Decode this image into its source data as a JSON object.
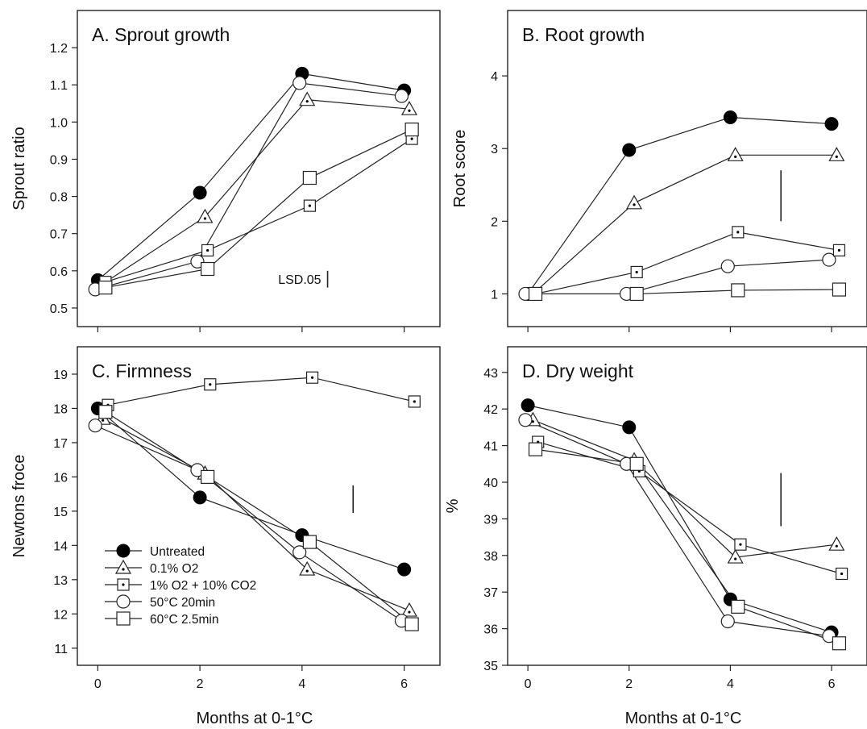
{
  "chart_data": [
    {
      "type": "line",
      "title": "A.  Sprout growth",
      "xlabel": "",
      "ylabel": "Sprout ratio",
      "xlim": [
        -0.4,
        6.7
      ],
      "ylim": [
        0.45,
        1.3
      ],
      "yticks": [
        "0.5",
        "0.6",
        "0.7",
        "0.8",
        "0.9",
        "1.0",
        "1.1",
        "1.2"
      ],
      "xticks": [],
      "lsd": {
        "label": "LSD.05",
        "x": 4.5,
        "ymin": 0.555,
        "ymax": 0.6
      },
      "series": [
        {
          "name": "Untreated",
          "marker": "filled-circle",
          "x": [
            0,
            2,
            4,
            6
          ],
          "values": [
            0.575,
            0.81,
            1.13,
            1.085
          ]
        },
        {
          "name": "0.1% O2",
          "marker": "dotted-triangle",
          "x": [
            0.1,
            2.1,
            4.1,
            6.1
          ],
          "values": [
            0.565,
            0.745,
            1.06,
            1.035
          ]
        },
        {
          "name": "1% O2 + 10% CO2",
          "marker": "dotted-square",
          "x": [
            0.15,
            2.15,
            4.15,
            6.15
          ],
          "values": [
            0.57,
            0.655,
            0.775,
            0.955
          ]
        },
        {
          "name": "50°C 20min",
          "marker": "open-circle",
          "x": [
            -0.05,
            1.95,
            3.95,
            5.95
          ],
          "values": [
            0.55,
            0.625,
            1.105,
            1.07
          ]
        },
        {
          "name": "60°C 2.5min",
          "marker": "open-square",
          "x": [
            0.15,
            2.15,
            4.15,
            6.15
          ],
          "values": [
            0.555,
            0.605,
            0.85,
            0.98
          ]
        }
      ]
    },
    {
      "type": "line",
      "title": "B.  Root growth",
      "xlabel": "",
      "ylabel": "Root score",
      "xlim": [
        -0.4,
        6.7
      ],
      "ylim": [
        0.55,
        4.9
      ],
      "yticks": [
        "1",
        "2",
        "3",
        "4"
      ],
      "xticks": [],
      "lsd": {
        "label": "",
        "x": 5.0,
        "ymin": 2.0,
        "ymax": 2.7
      },
      "series": [
        {
          "name": "Untreated",
          "marker": "filled-circle",
          "x": [
            0,
            2,
            4,
            6
          ],
          "values": [
            1.0,
            2.98,
            3.43,
            3.34
          ]
        },
        {
          "name": "0.1% O2",
          "marker": "dotted-triangle",
          "x": [
            0.1,
            2.1,
            4.1,
            6.1
          ],
          "values": [
            1.0,
            2.25,
            2.91,
            2.91
          ]
        },
        {
          "name": "1% O2 + 10% CO2",
          "marker": "dotted-square",
          "x": [
            0.15,
            2.15,
            4.15,
            6.15
          ],
          "values": [
            1.0,
            1.3,
            1.85,
            1.6
          ]
        },
        {
          "name": "50°C 20min",
          "marker": "open-circle",
          "x": [
            -0.05,
            1.95,
            3.95,
            5.95
          ],
          "values": [
            1.0,
            1.0,
            1.38,
            1.47
          ]
        },
        {
          "name": "60°C 2.5min",
          "marker": "open-square",
          "x": [
            0.15,
            2.15,
            4.15,
            6.15
          ],
          "values": [
            1.0,
            1.0,
            1.05,
            1.06
          ]
        }
      ]
    },
    {
      "type": "line",
      "title": "C.  Firmness",
      "xlabel": "Months at 0-1°C",
      "ylabel": "Newtons froce",
      "xlim": [
        -0.4,
        6.7
      ],
      "ylim": [
        10.5,
        19.8
      ],
      "yticks": [
        "11",
        "12",
        "13",
        "14",
        "15",
        "16",
        "17",
        "18",
        "19"
      ],
      "xticks": [
        "0",
        "2",
        "4",
        "6"
      ],
      "lsd": {
        "label": "",
        "x": 5.0,
        "ymin": 14.95,
        "ymax": 15.75
      },
      "series": [
        {
          "name": "Untreated",
          "marker": "filled-circle",
          "x": [
            0,
            2,
            4,
            6
          ],
          "values": [
            18.0,
            15.4,
            14.3,
            13.3
          ]
        },
        {
          "name": "0.1% O2",
          "marker": "dotted-triangle",
          "x": [
            0.1,
            2.1,
            4.1,
            6.1
          ],
          "values": [
            17.7,
            16.1,
            13.3,
            12.1
          ]
        },
        {
          "name": "1% O2 + 10% CO2",
          "marker": "dotted-square",
          "x": [
            0.2,
            2.2,
            4.2,
            6.2
          ],
          "values": [
            18.1,
            18.7,
            18.9,
            18.2
          ]
        },
        {
          "name": "50°C 20min",
          "marker": "open-circle",
          "x": [
            -0.05,
            1.95,
            3.95,
            5.95
          ],
          "values": [
            17.5,
            16.2,
            13.8,
            11.8
          ]
        },
        {
          "name": "60°C 2.5min",
          "marker": "open-square",
          "x": [
            0.15,
            2.15,
            4.15,
            6.15
          ],
          "values": [
            17.9,
            16.0,
            14.1,
            11.7
          ]
        }
      ],
      "legend": {
        "placement": "bottom-left",
        "items": [
          "Untreated",
          "0.1% O2",
          "1% O2 + 10% CO2",
          "50°C 20min",
          "60°C 2.5min"
        ]
      }
    },
    {
      "type": "line",
      "title": "D.  Dry weight",
      "xlabel": "Months at 0-1°C",
      "ylabel": "%",
      "xlim": [
        -0.4,
        6.7
      ],
      "ylim": [
        35.0,
        43.7
      ],
      "yticks": [
        "35",
        "36",
        "37",
        "38",
        "39",
        "40",
        "41",
        "42",
        "43"
      ],
      "xticks": [
        "0",
        "2",
        "4",
        "6"
      ],
      "lsd": {
        "label": "",
        "x": 5.0,
        "ymin": 38.8,
        "ymax": 40.25
      },
      "series": [
        {
          "name": "Untreated",
          "marker": "filled-circle",
          "x": [
            0,
            2,
            4,
            6
          ],
          "values": [
            42.1,
            41.5,
            36.8,
            35.9
          ]
        },
        {
          "name": "0.1% O2",
          "marker": "dotted-triangle",
          "x": [
            0.1,
            2.1,
            4.1,
            6.1
          ],
          "values": [
            41.7,
            40.6,
            37.95,
            38.3
          ]
        },
        {
          "name": "1% O2 + 10% CO2",
          "marker": "dotted-square",
          "x": [
            0.2,
            2.2,
            4.2,
            6.2
          ],
          "values": [
            41.1,
            40.3,
            38.3,
            37.5
          ]
        },
        {
          "name": "50°C 20min",
          "marker": "open-circle",
          "x": [
            -0.05,
            1.95,
            3.95,
            5.95
          ],
          "values": [
            41.7,
            40.5,
            36.2,
            35.8
          ]
        },
        {
          "name": "60°C 2.5min",
          "marker": "open-square",
          "x": [
            0.15,
            2.15,
            4.15,
            6.15
          ],
          "values": [
            40.9,
            40.5,
            36.6,
            35.6
          ]
        }
      ]
    }
  ]
}
